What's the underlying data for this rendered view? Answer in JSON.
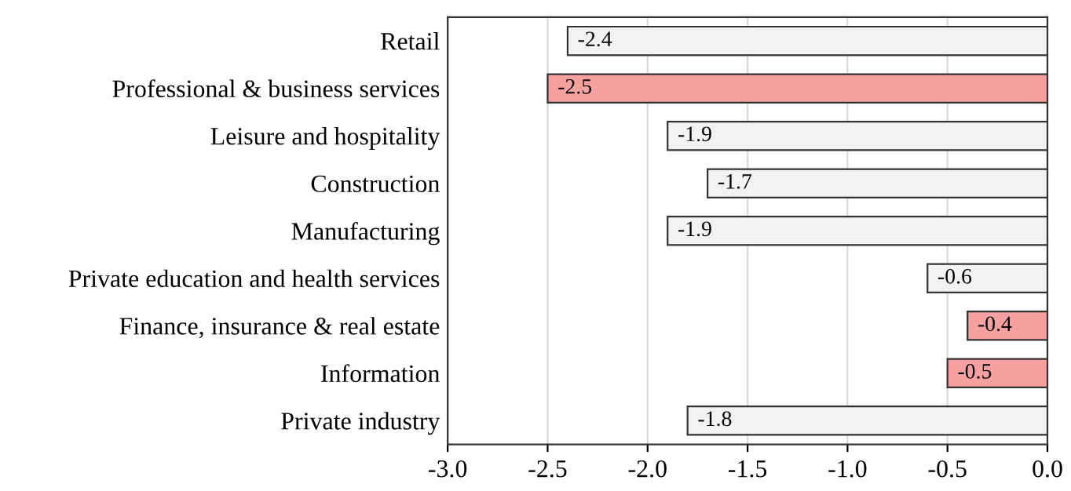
{
  "chart_data": {
    "type": "bar",
    "orientation": "horizontal",
    "categories": [
      "Retail",
      "Professional & business services",
      "Leisure and hospitality",
      "Construction",
      "Manufacturing",
      "Private education and health services",
      "Finance, insurance & real estate",
      "Information",
      "Private industry"
    ],
    "values": [
      -2.4,
      -2.5,
      -1.9,
      -1.7,
      -1.9,
      -0.6,
      -0.4,
      -0.5,
      -1.8
    ],
    "colors": [
      "#f2f2f2",
      "#f7a0a0",
      "#f2f2f2",
      "#f2f2f2",
      "#f2f2f2",
      "#f2f2f2",
      "#f7a0a0",
      "#f7a0a0",
      "#f2f2f2"
    ],
    "xlim": [
      -3.0,
      0.0
    ],
    "xticks": [
      {
        "value": -3.0,
        "label": "-3.0"
      },
      {
        "value": -2.5,
        "label": "-2.5"
      },
      {
        "value": -2.0,
        "label": "-2.0"
      },
      {
        "value": -1.5,
        "label": "-1.5"
      },
      {
        "value": -1.0,
        "label": "-1.0"
      },
      {
        "value": -0.5,
        "label": "-0.5"
      },
      {
        "value": 0.0,
        "label": "0.0"
      }
    ],
    "grid": "x",
    "data_labels": true
  }
}
